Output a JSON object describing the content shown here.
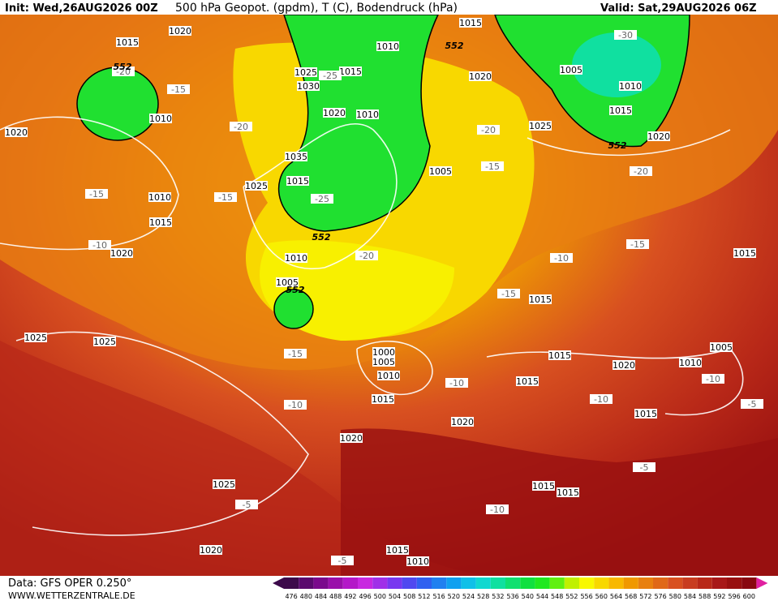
{
  "header": {
    "init": "Init: Wed,26AUG2026 00Z",
    "product": "500 hPa Geopot. (gpdm), T (C), Bodendruck (hPa)",
    "valid": "Valid: Sat,29AUG2026 06Z"
  },
  "footer": {
    "data": "Data: GFS OPER 0.250°",
    "site": "WWW.WETTERZENTRALE.DE"
  },
  "colorbar": {
    "ticks": [
      476,
      480,
      484,
      488,
      492,
      496,
      500,
      504,
      508,
      512,
      516,
      520,
      524,
      528,
      532,
      536,
      540,
      544,
      548,
      552,
      556,
      560,
      564,
      568,
      572,
      576,
      580,
      584,
      588,
      592,
      596,
      600
    ],
    "colors": [
      "#3c0a4a",
      "#5a0a6e",
      "#7a0a8c",
      "#9a10aa",
      "#b418c8",
      "#c828e0",
      "#a030e8",
      "#7838f0",
      "#5048f0",
      "#3060f0",
      "#2080f0",
      "#10a0f0",
      "#10c0e8",
      "#10d8d0",
      "#10e0a0",
      "#10e070",
      "#10e040",
      "#20e820",
      "#60f010",
      "#c0f000",
      "#f8f800",
      "#f8d800",
      "#f8b800",
      "#f09800",
      "#e88010",
      "#e06818",
      "#d85020",
      "#c83c20",
      "#b82818",
      "#a81818",
      "#981010",
      "#880810"
    ]
  },
  "isobar_labels": [
    "1015",
    "1020",
    "1015",
    "1010",
    "1025",
    "1015",
    "1030",
    "1005",
    "1010",
    "1020",
    "1020",
    "1010",
    "1010",
    "1020",
    "1025",
    "1015",
    "1020",
    "1035",
    "1015",
    "1025",
    "1005",
    "1010",
    "1015",
    "1020",
    "1010",
    "1005",
    "1015",
    "1025",
    "1025",
    "1015",
    "1000",
    "1005",
    "1010",
    "1015",
    "1020",
    "1010",
    "1005",
    "1015",
    "1015",
    "1020",
    "1015",
    "1020",
    "1025",
    "1015",
    "1015",
    "1020",
    "1015",
    "1010"
  ],
  "temp_labels": [
    "-20",
    "-15",
    "-25",
    "-20",
    "-15",
    "-15",
    "-25",
    "-10",
    "-20",
    "-15",
    "-20",
    "-20",
    "-15",
    "-10",
    "-15",
    "-15",
    "-10",
    "-10",
    "-10",
    "-10",
    "-5",
    "-5",
    "-5",
    "-10",
    "-5",
    "-30"
  ],
  "geopot_labels": [
    "552",
    "552",
    "552",
    "552",
    "552"
  ]
}
